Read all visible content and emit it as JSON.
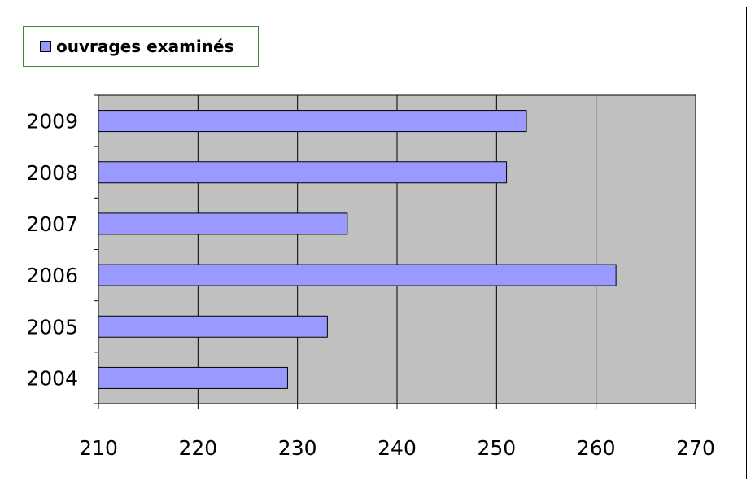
{
  "chart_data": {
    "type": "bar",
    "orientation": "horizontal",
    "categories": [
      "2004",
      "2005",
      "2006",
      "2007",
      "2008",
      "2009"
    ],
    "series": [
      {
        "name": "ouvrages examinés",
        "values": [
          229,
          233,
          262,
          235,
          251,
          253
        ]
      }
    ],
    "xlim": [
      210,
      270
    ],
    "xticks": [
      "210",
      "220",
      "230",
      "240",
      "250",
      "260",
      "270"
    ],
    "grid": true,
    "legend": "top-left",
    "colors": {
      "bar_fill": "#9999ff",
      "bar_stroke": "#000000",
      "plot_bg": "#c0c0c0",
      "gridline": "#000000",
      "legend_border": "#3a8a3a"
    }
  }
}
